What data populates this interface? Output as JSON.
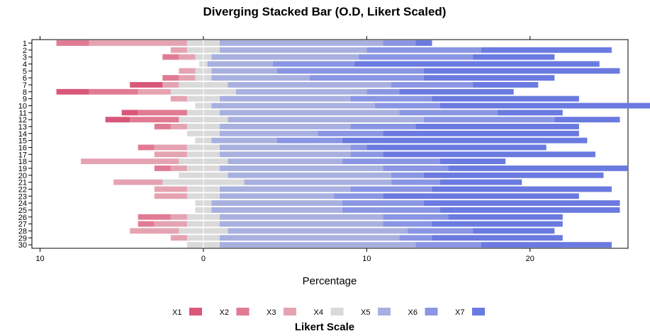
{
  "chart_data": {
    "type": "bar",
    "subtype": "diverging-stacked-horizontal",
    "title": "Diverging Stacked Bar (O.D, Likert Scaled)",
    "xlabel": "Percentage",
    "ylabel": "",
    "xlim": [
      -10.5,
      26
    ],
    "x_ticks": [
      -10,
      0,
      10,
      20
    ],
    "x_tick_labels": [
      "10",
      "0",
      "10",
      "20"
    ],
    "grid": false,
    "legend_title": "Likert Scale",
    "legend_position": "bottom",
    "colors": {
      "X1": "#d9587a",
      "X2": "#e07b93",
      "X3": "#e5a3b2",
      "X4": "#dadada",
      "X5": "#a8b0e0",
      "X6": "#8a96e3",
      "X7": "#6b7ae0"
    },
    "categories": [
      "1",
      "2",
      "3",
      "4",
      "5",
      "6",
      "7",
      "8",
      "9",
      "10",
      "11",
      "12",
      "13",
      "14",
      "15",
      "16",
      "17",
      "18",
      "19",
      "20",
      "21",
      "22",
      "23",
      "24",
      "25",
      "26",
      "27",
      "28",
      "29",
      "30"
    ],
    "series": [
      {
        "name": "X1",
        "values": [
          0,
          0,
          0,
          0,
          0,
          0,
          2,
          2,
          0,
          0,
          1,
          1.5,
          0,
          0,
          0,
          0,
          0,
          0,
          0,
          0,
          0,
          0,
          0,
          0,
          0,
          0,
          0,
          0,
          0,
          0
        ]
      },
      {
        "name": "X2",
        "values": [
          2,
          0,
          1,
          0,
          0,
          1,
          0,
          3,
          0,
          0,
          3,
          3,
          1,
          0,
          0,
          1,
          0,
          0,
          1,
          0,
          0,
          0,
          0,
          0,
          0,
          2,
          1,
          0,
          0,
          0
        ]
      },
      {
        "name": "X3",
        "values": [
          6,
          1,
          1,
          0,
          1,
          1,
          1,
          2,
          1,
          0,
          0,
          0,
          1,
          0,
          0,
          2,
          2,
          6,
          1,
          0,
          3,
          2,
          2,
          0,
          0,
          1,
          2,
          3,
          1,
          0
        ]
      },
      {
        "name": "X4",
        "values": [
          2,
          2,
          1,
          0.5,
          1,
          1,
          3,
          4,
          2,
          1,
          2,
          3,
          2,
          2,
          1,
          2,
          2,
          3,
          2,
          3,
          5,
          2,
          2,
          1,
          1,
          2,
          2,
          3,
          2,
          2
        ]
      },
      {
        "name": "X5",
        "values": [
          10,
          9,
          9,
          4,
          4,
          6,
          10,
          8,
          8,
          10,
          11,
          12,
          8,
          6,
          4,
          8,
          8,
          7,
          10,
          10,
          9,
          8,
          7,
          8,
          8,
          10,
          10,
          11,
          11,
          12
        ]
      },
      {
        "name": "X6",
        "values": [
          2,
          7,
          7,
          5,
          9,
          7,
          5,
          2,
          5,
          4,
          6,
          8,
          4,
          4,
          4,
          1,
          2,
          6,
          4,
          2,
          3,
          5,
          3,
          5,
          6,
          4,
          3,
          4,
          2,
          4
        ]
      },
      {
        "name": "X7",
        "values": [
          1,
          8,
          5,
          15,
          12,
          8,
          4,
          7,
          9,
          13,
          4,
          4,
          10,
          12,
          15,
          11,
          13,
          4,
          11,
          11,
          5,
          11,
          12,
          12,
          11,
          7,
          8,
          5,
          8,
          8
        ]
      }
    ]
  }
}
